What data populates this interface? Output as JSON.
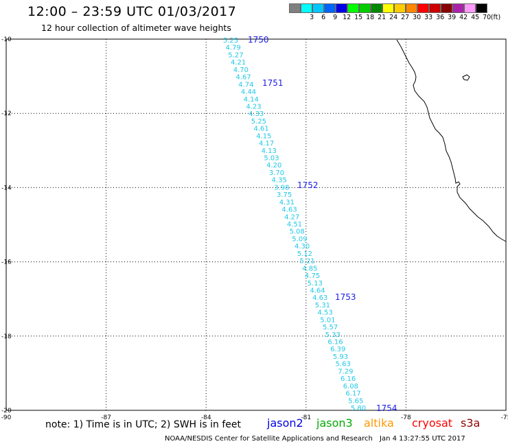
{
  "header": {
    "title": "12:00 – 23:59 UTC 01/03/2017",
    "subtitle": "12 hour collection of altimeter wave heights"
  },
  "legend": {
    "unit": "(ft)",
    "items": [
      {
        "label": "",
        "color": "#808080"
      },
      {
        "label": "3",
        "color": "#00ffff"
      },
      {
        "label": "6",
        "color": "#00c8ff"
      },
      {
        "label": "9",
        "color": "#0064ff"
      },
      {
        "label": "12",
        "color": "#0000e6"
      },
      {
        "label": "15",
        "color": "#00ff00"
      },
      {
        "label": "18",
        "color": "#00cc00"
      },
      {
        "label": "21",
        "color": "#008800"
      },
      {
        "label": "24",
        "color": "#ffff00"
      },
      {
        "label": "27",
        "color": "#ffcc00"
      },
      {
        "label": "30",
        "color": "#ff8800"
      },
      {
        "label": "33",
        "color": "#ff0000"
      },
      {
        "label": "36",
        "color": "#cc0000"
      },
      {
        "label": "39",
        "color": "#880000"
      },
      {
        "label": "42",
        "color": "#aa22aa"
      },
      {
        "label": "45",
        "color": "#ff99ff"
      },
      {
        "label": "70",
        "color": "#000000"
      }
    ]
  },
  "map": {
    "lat_range": [
      -20,
      -10
    ],
    "lon_range": [
      -90,
      -75
    ],
    "lat_ticks": [
      "-10",
      "-12",
      "-14",
      "-16",
      "-18",
      "-20"
    ],
    "lon_ticks": [
      "-90",
      "-87",
      "-84",
      "-81",
      "-78",
      "-75"
    ],
    "gridlines": "dotted",
    "track_color": "#1fc8e6",
    "pass_label_color": "#1a1ae6",
    "coast_color": "#000000",
    "pass_labels": [
      "1750",
      "1751",
      "1752",
      "1753",
      "1754"
    ],
    "wave_heights": [
      "5.25",
      "4.79",
      "5.27",
      "4.21",
      "4.70",
      "4.67",
      "4.74",
      "4.44",
      "4.14",
      "4.23",
      "4.33",
      "5.25",
      "4.61",
      "4.15",
      "4.17",
      "4.13",
      "5.03",
      "4.20",
      "3.70",
      "4.35",
      "3.98",
      "3.75",
      "4.31",
      "4.63",
      "4.27",
      "4.51",
      "5.08",
      "5.09",
      "4.30",
      "5.12",
      "5.21",
      "4.85",
      "4.75",
      "5.13",
      "4.64",
      "4.63",
      "5.31",
      "4.53",
      "5.01",
      "5.57",
      "5.33",
      "6.16",
      "6.39",
      "5.93",
      "5.63",
      "7.29",
      "6.16",
      "6.08",
      "6.17",
      "5.65",
      "5.80"
    ]
  },
  "footer": {
    "note": "note: 1) Time is in UTC; 2) SWH is in feet",
    "satellites": [
      {
        "name": "jason2",
        "color": "#0000e6"
      },
      {
        "name": "jason3",
        "color": "#00aa00"
      },
      {
        "name": "altika",
        "color": "#ff9900"
      },
      {
        "name": "cryosat",
        "color": "#ff0000"
      },
      {
        "name": "s3a",
        "color": "#8b0000"
      }
    ],
    "credit": "NOAA/NESDIS Center for Satellite Applications and Research",
    "timestamp": "Jan  4 13:27:55 UTC 2017"
  }
}
